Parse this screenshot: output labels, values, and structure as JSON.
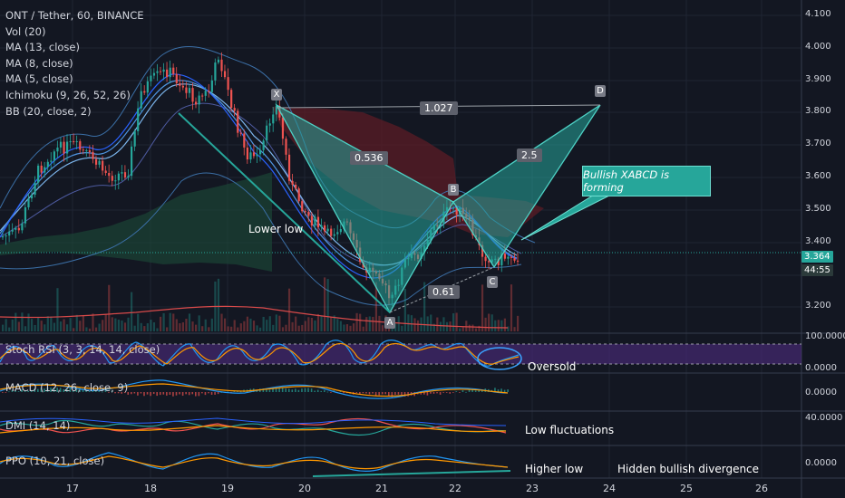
{
  "legend": {
    "symbol": "ONT / Tether, 60, BINANCE",
    "indicators": [
      "Vol (20)",
      "MA (13, close)",
      "MA (8, close)",
      "MA (5, close)",
      "Ichimoku (9, 26, 52, 26)",
      "BB (20, close, 2)"
    ]
  },
  "panes": {
    "stoch_rsi": "Stoch RSI (3, 3, 14, 14, close)",
    "macd": "MACD (12, 26, close, 9)",
    "dmi": "DMI (14, 14)",
    "ppo": "PPO (10, 21, close)"
  },
  "price_axis": [
    "4.100",
    "4.000",
    "3.900",
    "3.800",
    "3.700",
    "3.600",
    "3.500",
    "3.400",
    "3.300",
    "3.200"
  ],
  "pane_axis": {
    "stoch_top": "100.0000",
    "stoch_bottom": "0.0000",
    "macd": "0.0000",
    "dmi": "40.0000",
    "ppo": "0.0000"
  },
  "last_price": "3.364",
  "countdown": "44:55",
  "time_axis": [
    "17",
    "18",
    "19",
    "20",
    "21",
    "22",
    "23",
    "24",
    "25",
    "26"
  ],
  "pattern": {
    "points": {
      "x": "X",
      "a": "A",
      "b": "B",
      "c": "C",
      "d": "D"
    },
    "ratios": {
      "xb": "0.536",
      "ac": "0.61",
      "bd": "2.5",
      "xd": "1.027"
    }
  },
  "annotations": {
    "callout": "Bullish XABCD is forming",
    "lower_low": "Lower low",
    "oversold": "Oversold",
    "low_fluct": "Low fluctuations",
    "higher_low": "Higher low",
    "hidden_div": "Hidden bullish divergence"
  },
  "colors": {
    "background": "#131722",
    "bull": "#26a69a",
    "bear": "#ef5350",
    "pattern": "#26a69a"
  }
}
